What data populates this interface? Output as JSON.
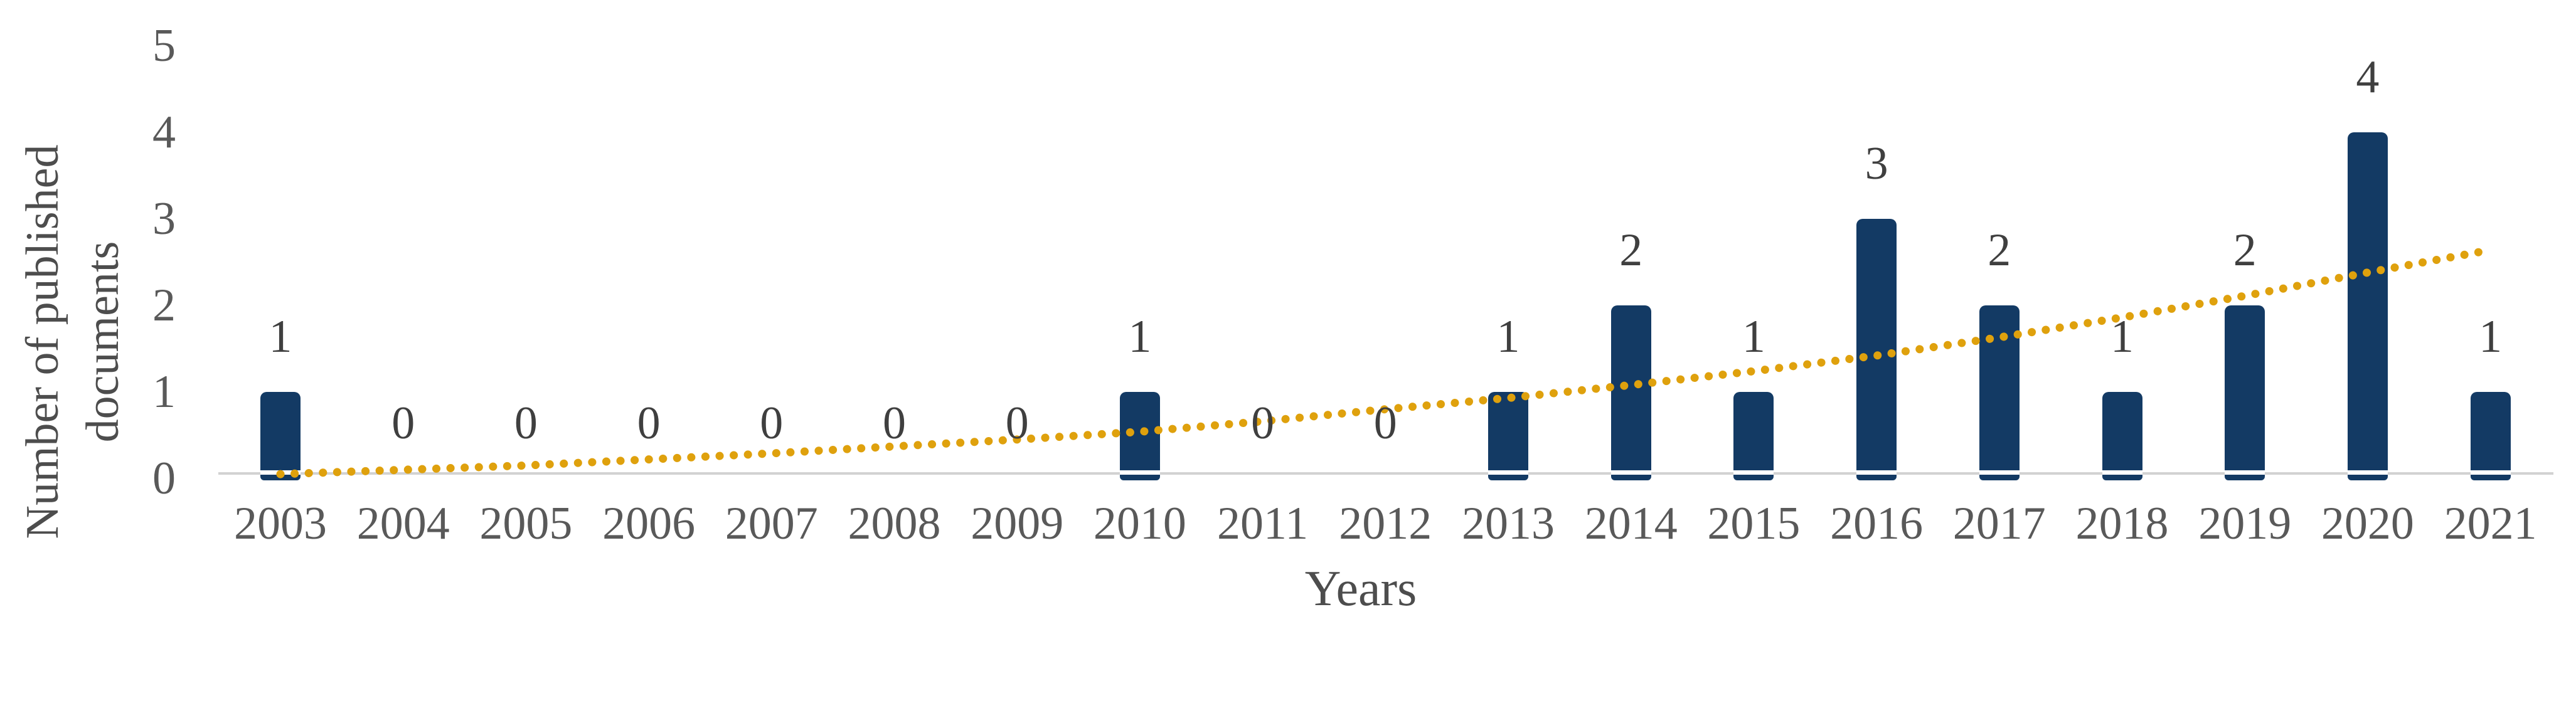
{
  "chart_data": {
    "type": "bar",
    "title": "",
    "xlabel": "Years",
    "ylabel": "Number of published documents",
    "ylabel_lines": [
      "Number of published",
      "documents"
    ],
    "categories": [
      "2003",
      "2004",
      "2005",
      "2006",
      "2007",
      "2008",
      "2009",
      "2010",
      "2011",
      "2012",
      "2013",
      "2014",
      "2015",
      "2016",
      "2017",
      "2018",
      "2019",
      "2020",
      "2021"
    ],
    "values": [
      1,
      0,
      0,
      0,
      0,
      0,
      0,
      1,
      0,
      0,
      1,
      2,
      1,
      3,
      2,
      1,
      2,
      4,
      1
    ],
    "data_labels": [
      "1",
      "0",
      "0",
      "0",
      "0",
      "0",
      "0",
      "1",
      "0",
      "0",
      "1",
      "2",
      "1",
      "3",
      "2",
      "1",
      "2",
      "4",
      "1"
    ],
    "yticks": [
      "0",
      "1",
      "2",
      "3",
      "4",
      "5"
    ],
    "ylim": [
      0,
      5
    ],
    "grid": false,
    "legend": false,
    "bar_color": "#133a64",
    "axis_line_color": "#d2d2d2",
    "tick_text_color": "#595959",
    "label_text_color": "#3f3f3f",
    "axis_title_color": "#4d4d4d",
    "trendline": {
      "style": "dotted",
      "color": "#dfa10d",
      "values": [
        0.05,
        0.1,
        0.15,
        0.22,
        0.29,
        0.37,
        0.45,
        0.54,
        0.66,
        0.8,
        0.93,
        1.08,
        1.24,
        1.42,
        1.63,
        1.86,
        2.11,
        2.38,
        2.64
      ]
    }
  }
}
